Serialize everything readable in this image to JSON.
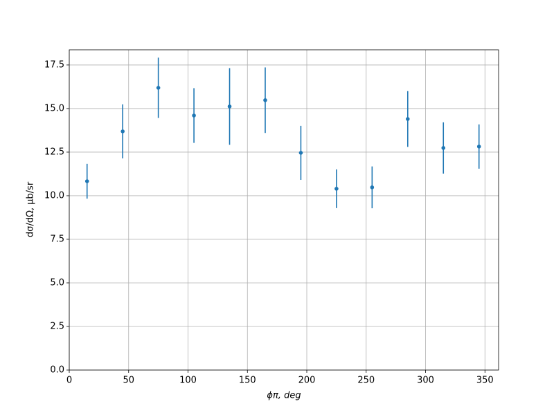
{
  "chart_data": {
    "type": "errorbar",
    "xlabel": "ϕπ, deg",
    "ylabel": "dσ/dΩ, μb/sr",
    "color": "#1f77b4",
    "grid": true,
    "x": [
      15,
      45,
      75,
      105,
      135,
      165,
      195,
      225,
      255,
      285,
      315,
      345
    ],
    "values": [
      10.83,
      13.69,
      16.19,
      14.6,
      15.12,
      15.48,
      12.46,
      10.4,
      10.48,
      14.4,
      12.74,
      12.82
    ],
    "errors": [
      1.0,
      1.55,
      1.73,
      1.57,
      2.2,
      1.88,
      1.55,
      1.11,
      1.2,
      1.6,
      1.47,
      1.27
    ],
    "xlim": [
      0,
      361.5
    ],
    "ylim": [
      0,
      18.37
    ],
    "xticks": [
      0,
      50,
      100,
      150,
      200,
      250,
      300,
      350
    ],
    "yticks": [
      {
        "value": 0,
        "label": "0.0"
      },
      {
        "value": 2.5,
        "label": "2.5"
      },
      {
        "value": 5,
        "label": "5.0"
      },
      {
        "value": 7.5,
        "label": "7.5"
      },
      {
        "value": 10,
        "label": "10.0"
      },
      {
        "value": 12.5,
        "label": "12.5"
      },
      {
        "value": 15,
        "label": "15.0"
      },
      {
        "value": 17.5,
        "label": "17.5"
      }
    ]
  }
}
